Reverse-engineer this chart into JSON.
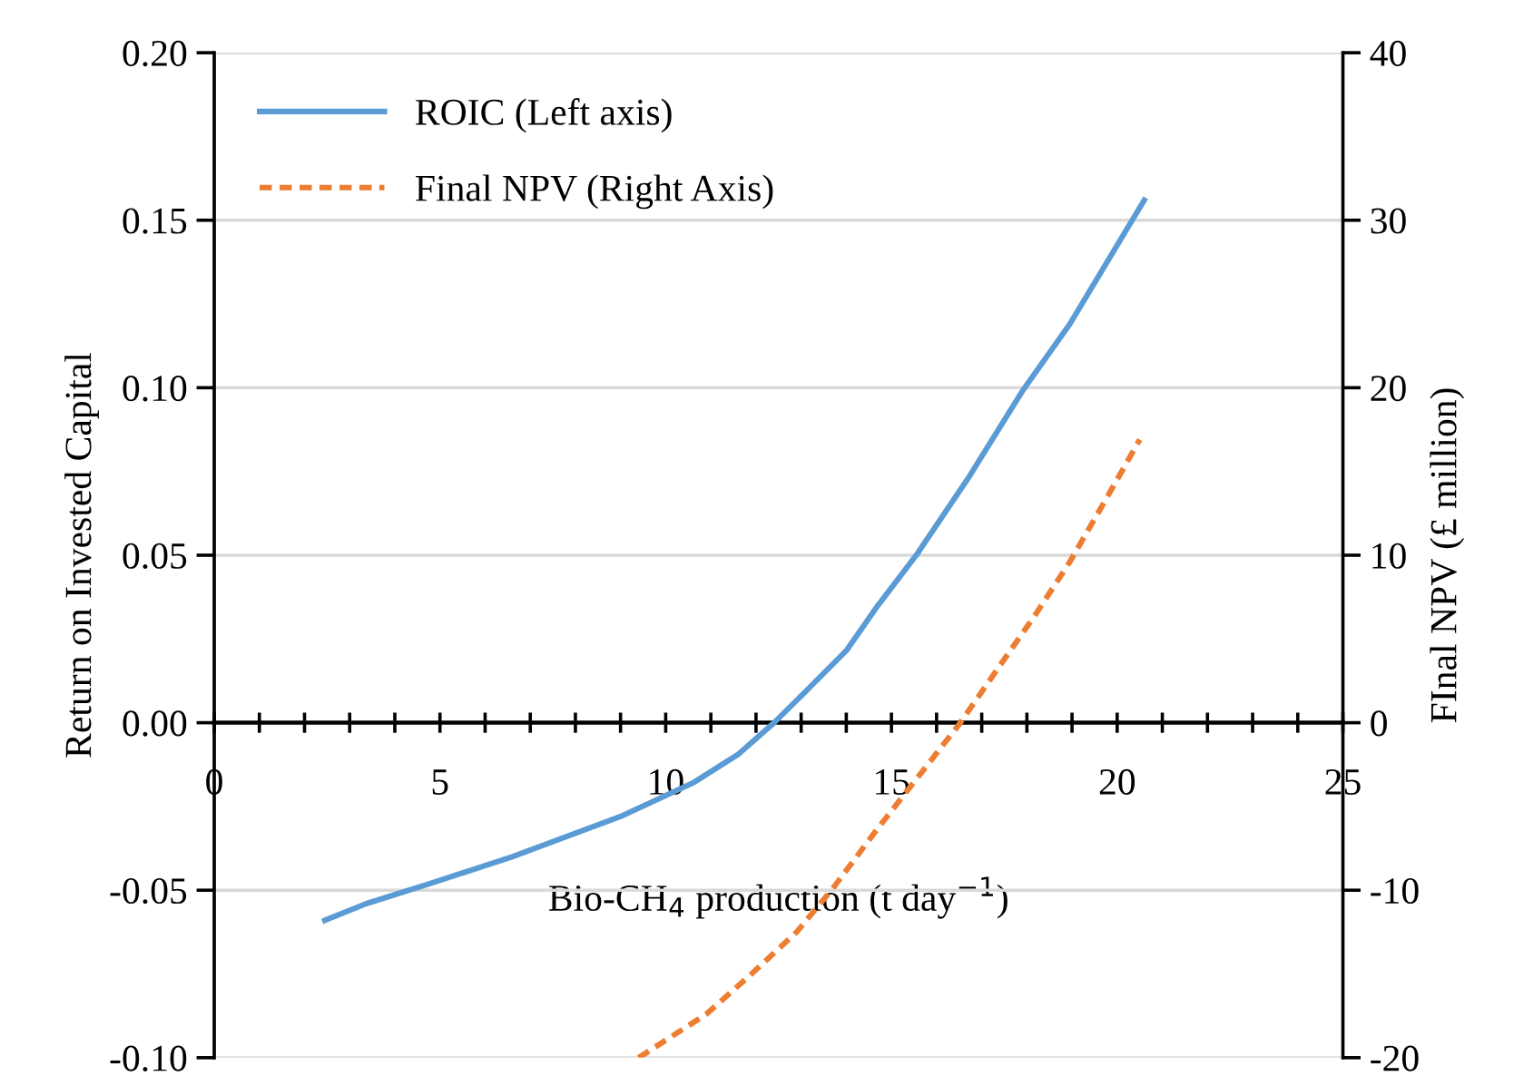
{
  "chart_data": {
    "type": "line",
    "xlabel": "Bio-CH$_{4}$ production (t day$^{−1}$)",
    "ylabel": "Return on Invested Capital",
    "y2label": "FInal NPV (£ million)",
    "series": [
      {
        "name": "ROIC (Left axis)",
        "color": "#5b9bd5",
        "line_style": "solid",
        "x": [
          2.45,
          3.37,
          4.78,
          6.6,
          9.0,
          10.6,
          11.6,
          12.4,
          13.15,
          14.0,
          14.7,
          15.55,
          16.7,
          17.9,
          18.95,
          20.6
        ],
        "values": [
          -0.059,
          -0.054,
          -0.048,
          -0.04,
          -0.028,
          -0.018,
          -0.0095,
          0.0,
          0.01,
          0.0215,
          0.035,
          0.05,
          0.073,
          0.099,
          0.119,
          0.156
        ]
      },
      {
        "name": "Final NPV (Right Axis)",
        "color": "#ed7d31",
        "line_style": "dashed",
        "axis": "y2",
        "x": [
          9.4,
          10.9,
          11.9,
          12.9,
          13.7,
          14.7,
          15.6,
          16.5,
          17.4,
          18.2,
          18.95,
          19.7,
          20.5
        ],
        "values": [
          -20.0,
          -17.4,
          -15.0,
          -12.5,
          -9.9,
          -6.3,
          -3.2,
          -0.1,
          3.4,
          6.5,
          9.6,
          13.1,
          16.9
        ]
      }
    ],
    "xlim": [
      0,
      25
    ],
    "xticks": [
      0,
      {
        "value": 1,
        "label": null
      },
      {
        "value": 2,
        "label": null
      },
      {
        "value": 3,
        "label": null
      },
      {
        "value": 4,
        "label": null
      },
      5,
      {
        "value": 6,
        "label": null
      },
      {
        "value": 7,
        "label": null
      },
      {
        "value": 8,
        "label": null
      },
      {
        "value": 9,
        "label": null
      },
      10,
      {
        "value": 11,
        "label": null
      },
      {
        "value": 12,
        "label": null
      },
      {
        "value": 13,
        "label": null
      },
      {
        "value": 14,
        "label": null
      },
      15,
      {
        "value": 16,
        "label": null
      },
      {
        "value": 17,
        "label": null
      },
      {
        "value": 18,
        "label": null
      },
      {
        "value": 19,
        "label": null
      },
      20,
      {
        "value": 21,
        "label": null
      },
      {
        "value": 22,
        "label": null
      },
      {
        "value": 23,
        "label": null
      },
      {
        "value": 24,
        "label": null
      },
      25
    ],
    "ylim": [
      -0.1,
      0.2
    ],
    "yticks": [
      {
        "value": -0.1,
        "label": "-0.10"
      },
      {
        "value": -0.05,
        "label": "-0.05"
      },
      {
        "value": 0,
        "label": "0.00"
      },
      {
        "value": 0.05,
        "label": "0.05"
      },
      {
        "value": 0.1,
        "label": "0.10"
      },
      {
        "value": 0.15,
        "label": "0.15"
      },
      {
        "value": 0.2,
        "label": "0.20"
      }
    ],
    "y2lim": [
      -20,
      40
    ],
    "y2ticks": [
      -20,
      -10,
      0,
      10,
      20,
      30,
      40
    ],
    "grid": "y",
    "legend": "top left"
  }
}
